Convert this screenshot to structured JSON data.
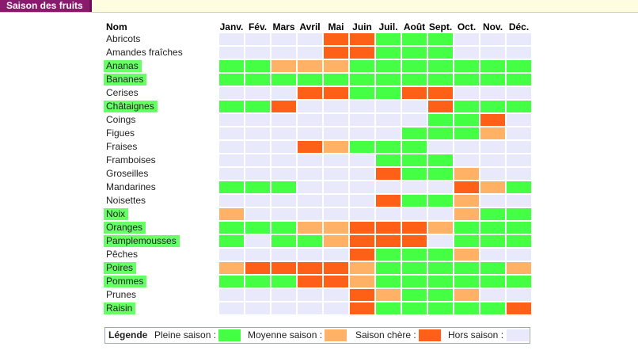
{
  "tab": {
    "title": "Saison des fruits"
  },
  "table": {
    "name_header": "Nom",
    "months": [
      "Janv.",
      "Fév.",
      "Mars",
      "Avril",
      "Mai",
      "Juin",
      "Juil.",
      "Août",
      "Sept.",
      "Oct.",
      "Nov.",
      "Déc."
    ]
  },
  "colors": {
    "P": "#45ff45",
    "M": "#ffb266",
    "C": "#ff6018",
    "H": "#e8eafc"
  },
  "fruits": [
    {
      "name": "Abricots",
      "highlighted": false,
      "seasons": [
        "H",
        "H",
        "H",
        "H",
        "C",
        "C",
        "P",
        "P",
        "P",
        "H",
        "H",
        "H"
      ]
    },
    {
      "name": "Amandes fraîches",
      "highlighted": false,
      "seasons": [
        "H",
        "H",
        "H",
        "H",
        "C",
        "C",
        "P",
        "P",
        "P",
        "H",
        "H",
        "H"
      ]
    },
    {
      "name": "Ananas",
      "highlighted": true,
      "seasons": [
        "P",
        "P",
        "M",
        "M",
        "M",
        "P",
        "P",
        "P",
        "P",
        "P",
        "P",
        "P"
      ]
    },
    {
      "name": "Bananes",
      "highlighted": true,
      "seasons": [
        "P",
        "P",
        "P",
        "P",
        "P",
        "P",
        "P",
        "P",
        "P",
        "P",
        "P",
        "P"
      ]
    },
    {
      "name": "Cerises",
      "highlighted": false,
      "seasons": [
        "H",
        "H",
        "H",
        "C",
        "C",
        "P",
        "P",
        "C",
        "C",
        "H",
        "H",
        "H"
      ]
    },
    {
      "name": "Châtaignes",
      "highlighted": true,
      "seasons": [
        "P",
        "P",
        "C",
        "H",
        "H",
        "H",
        "H",
        "H",
        "C",
        "P",
        "P",
        "P"
      ]
    },
    {
      "name": "Coings",
      "highlighted": false,
      "seasons": [
        "H",
        "H",
        "H",
        "H",
        "H",
        "H",
        "H",
        "H",
        "P",
        "P",
        "C",
        "H"
      ]
    },
    {
      "name": "Figues",
      "highlighted": false,
      "seasons": [
        "H",
        "H",
        "H",
        "H",
        "H",
        "H",
        "H",
        "P",
        "P",
        "P",
        "M",
        "H"
      ]
    },
    {
      "name": "Fraises",
      "highlighted": false,
      "seasons": [
        "H",
        "H",
        "H",
        "C",
        "M",
        "P",
        "P",
        "P",
        "H",
        "H",
        "H",
        "H"
      ]
    },
    {
      "name": "Framboises",
      "highlighted": false,
      "seasons": [
        "H",
        "H",
        "H",
        "H",
        "H",
        "H",
        "P",
        "P",
        "P",
        "H",
        "H",
        "H"
      ]
    },
    {
      "name": "Groseilles",
      "highlighted": false,
      "seasons": [
        "H",
        "H",
        "H",
        "H",
        "H",
        "H",
        "C",
        "P",
        "P",
        "M",
        "H",
        "H"
      ]
    },
    {
      "name": "Mandarines",
      "highlighted": false,
      "seasons": [
        "P",
        "P",
        "P",
        "H",
        "H",
        "H",
        "H",
        "H",
        "H",
        "C",
        "M",
        "P"
      ]
    },
    {
      "name": "Noisettes",
      "highlighted": false,
      "seasons": [
        "H",
        "H",
        "H",
        "H",
        "H",
        "H",
        "C",
        "P",
        "P",
        "M",
        "H",
        "H"
      ]
    },
    {
      "name": "Noix",
      "highlighted": true,
      "seasons": [
        "M",
        "H",
        "H",
        "H",
        "H",
        "H",
        "H",
        "H",
        "H",
        "M",
        "P",
        "P"
      ]
    },
    {
      "name": "Oranges",
      "highlighted": true,
      "seasons": [
        "P",
        "P",
        "P",
        "M",
        "M",
        "C",
        "C",
        "C",
        "M",
        "P",
        "P",
        "P"
      ]
    },
    {
      "name": "Pamplemousses",
      "highlighted": true,
      "seasons": [
        "P",
        "H",
        "P",
        "P",
        "M",
        "C",
        "C",
        "C",
        "H",
        "P",
        "P",
        "P"
      ]
    },
    {
      "name": "Pêches",
      "highlighted": false,
      "seasons": [
        "H",
        "H",
        "H",
        "H",
        "H",
        "C",
        "P",
        "P",
        "P",
        "M",
        "H",
        "H"
      ]
    },
    {
      "name": "Poires",
      "highlighted": true,
      "seasons": [
        "M",
        "C",
        "C",
        "C",
        "C",
        "M",
        "P",
        "P",
        "P",
        "P",
        "P",
        "M"
      ]
    },
    {
      "name": "Pommes",
      "highlighted": true,
      "seasons": [
        "P",
        "P",
        "P",
        "C",
        "C",
        "M",
        "P",
        "P",
        "P",
        "P",
        "P",
        "P"
      ]
    },
    {
      "name": "Prunes",
      "highlighted": false,
      "seasons": [
        "H",
        "H",
        "H",
        "H",
        "H",
        "C",
        "M",
        "P",
        "P",
        "M",
        "H",
        "H"
      ]
    },
    {
      "name": "Raisin",
      "highlighted": true,
      "seasons": [
        "H",
        "H",
        "H",
        "H",
        "H",
        "C",
        "P",
        "P",
        "P",
        "P",
        "P",
        "C"
      ]
    }
  ],
  "legend": {
    "title": "Légende",
    "items": [
      {
        "label": "Pleine saison :",
        "key": "P"
      },
      {
        "label": "Moyenne saison :",
        "key": "M"
      },
      {
        "label": "Saison chère :",
        "key": "C"
      },
      {
        "label": "Hors saison :",
        "key": "H"
      }
    ]
  }
}
